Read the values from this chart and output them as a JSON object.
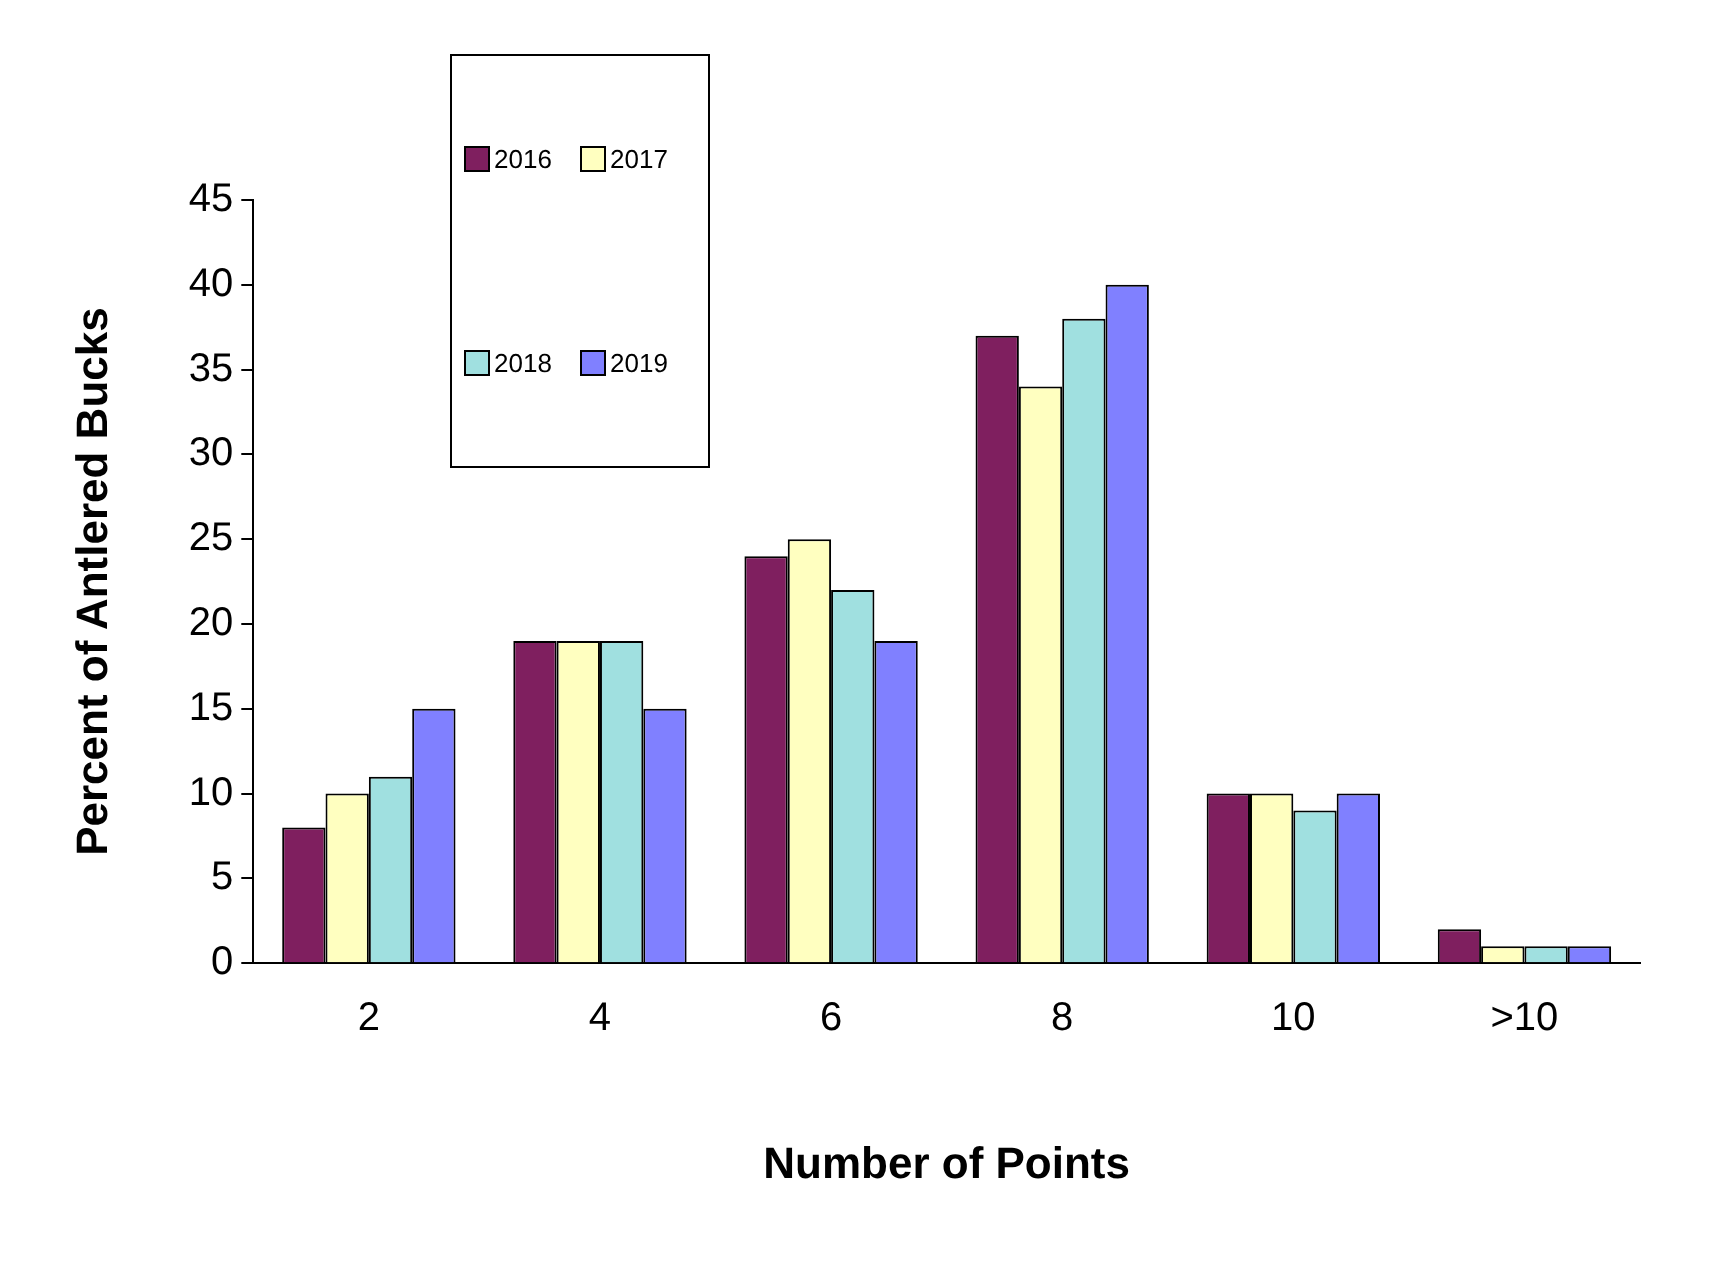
{
  "chart_data": {
    "type": "bar",
    "xlabel": "Number of Points",
    "ylabel": "Percent of Antlered Bucks",
    "categories": [
      "2",
      "4",
      "6",
      "8",
      "10",
      ">10"
    ],
    "series": [
      {
        "name": "2016",
        "color": "#7f1f5f",
        "values": [
          8,
          19,
          24,
          37,
          10,
          2
        ]
      },
      {
        "name": "2017",
        "color": "#ffffc0",
        "values": [
          10,
          19,
          25,
          34,
          10,
          1
        ]
      },
      {
        "name": "2018",
        "color": "#a0e0e0",
        "values": [
          11,
          19,
          22,
          38,
          9,
          1
        ]
      },
      {
        "name": "2019",
        "color": "#8080ff",
        "values": [
          15,
          15,
          19,
          40,
          10,
          1
        ]
      }
    ],
    "ylim": [
      0,
      45
    ],
    "yticks": [
      0,
      5,
      10,
      15,
      20,
      25,
      30,
      35,
      40,
      45
    ],
    "grid": false,
    "legend": "top left"
  }
}
